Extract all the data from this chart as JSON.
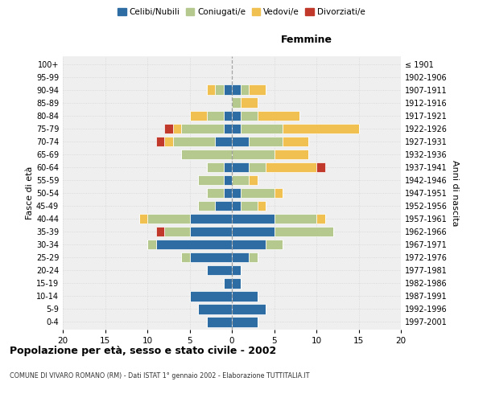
{
  "age_groups": [
    "0-4",
    "5-9",
    "10-14",
    "15-19",
    "20-24",
    "25-29",
    "30-34",
    "35-39",
    "40-44",
    "45-49",
    "50-54",
    "55-59",
    "60-64",
    "65-69",
    "70-74",
    "75-79",
    "80-84",
    "85-89",
    "90-94",
    "95-99",
    "100+"
  ],
  "birth_years": [
    "1997-2001",
    "1992-1996",
    "1987-1991",
    "1982-1986",
    "1977-1981",
    "1972-1976",
    "1967-1971",
    "1962-1966",
    "1957-1961",
    "1952-1956",
    "1947-1951",
    "1942-1946",
    "1937-1941",
    "1932-1936",
    "1927-1931",
    "1922-1926",
    "1917-1921",
    "1912-1916",
    "1907-1911",
    "1902-1906",
    "≤ 1901"
  ],
  "males": {
    "celibi": [
      3,
      4,
      5,
      1,
      3,
      5,
      9,
      5,
      5,
      2,
      1,
      1,
      1,
      0,
      2,
      1,
      1,
      0,
      1,
      0,
      0
    ],
    "coniugati": [
      0,
      0,
      0,
      0,
      0,
      1,
      1,
      3,
      5,
      2,
      2,
      3,
      2,
      6,
      5,
      5,
      2,
      0,
      1,
      0,
      0
    ],
    "vedovi": [
      0,
      0,
      0,
      0,
      0,
      0,
      0,
      0,
      1,
      0,
      0,
      0,
      0,
      0,
      1,
      1,
      2,
      0,
      1,
      0,
      0
    ],
    "divorziati": [
      0,
      0,
      0,
      0,
      0,
      0,
      0,
      1,
      0,
      0,
      0,
      0,
      0,
      0,
      1,
      1,
      0,
      0,
      0,
      0,
      0
    ]
  },
  "females": {
    "nubili": [
      3,
      4,
      3,
      1,
      1,
      2,
      4,
      5,
      5,
      1,
      1,
      0,
      2,
      0,
      2,
      1,
      1,
      0,
      1,
      0,
      0
    ],
    "coniugate": [
      0,
      0,
      0,
      0,
      0,
      1,
      2,
      7,
      5,
      2,
      4,
      2,
      2,
      5,
      4,
      5,
      2,
      1,
      1,
      0,
      0
    ],
    "vedove": [
      0,
      0,
      0,
      0,
      0,
      0,
      0,
      0,
      1,
      1,
      1,
      1,
      6,
      4,
      3,
      9,
      5,
      2,
      2,
      0,
      0
    ],
    "divorziate": [
      0,
      0,
      0,
      0,
      0,
      0,
      0,
      0,
      0,
      0,
      0,
      0,
      1,
      0,
      0,
      0,
      0,
      0,
      0,
      0,
      0
    ]
  },
  "colors": {
    "celibi": "#2E6DA4",
    "coniugati": "#B5C98E",
    "vedovi": "#F0C050",
    "divorziati": "#C0392B"
  },
  "xlim": 20,
  "title": "Popolazione per età, sesso e stato civile - 2002",
  "subtitle": "COMUNE DI VIVARO ROMANO (RM) - Dati ISTAT 1° gennaio 2002 - Elaborazione TUTTITALIA.IT",
  "ylabel_left": "Fasce di età",
  "ylabel_right": "Anni di nascita",
  "xlabel_right": "Femmine",
  "bg_color": "#FFFFFF",
  "plot_bg_color": "#EFEFEF"
}
